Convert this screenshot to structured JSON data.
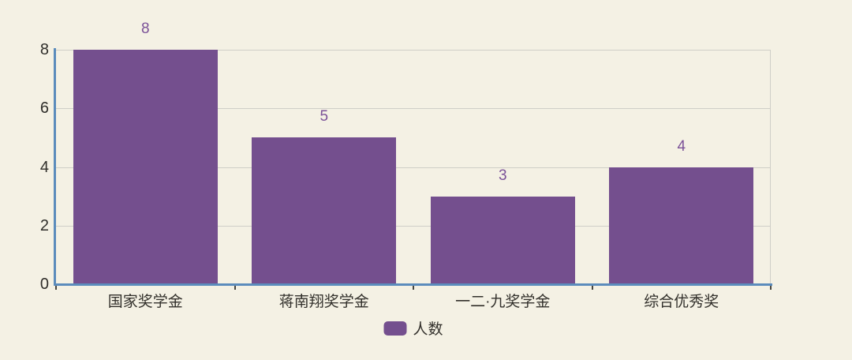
{
  "chart_data": {
    "type": "bar",
    "categories": [
      "国家奖学金",
      "蒋南翔奖学金",
      "一二·九奖学金",
      "综合优秀奖"
    ],
    "series": [
      {
        "name": "人数",
        "values": [
          8,
          5,
          3,
          4
        ]
      }
    ],
    "value_labels": [
      "8",
      "5",
      "3",
      "4"
    ],
    "title": "",
    "xlabel": "",
    "ylabel": "",
    "y_ticks": [
      0,
      2,
      4,
      6,
      8
    ],
    "ylim": [
      0,
      8
    ],
    "grid": true,
    "legend_position": "bottom-center",
    "colors": {
      "background": "#f4f1e4",
      "bar": "#744f8e",
      "value_label": "#7b5298",
      "axis_line": "#5b8cbc",
      "gridline": "#cfcec7",
      "tick_mark": "#46453f",
      "tick_text": "#2f2e2a",
      "category_text": "#33312c"
    }
  },
  "legend": {
    "label": "人数"
  }
}
